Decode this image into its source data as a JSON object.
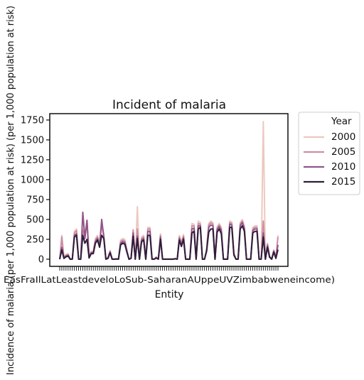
{
  "chart_data": {
    "type": "line",
    "title": "Incident of malaria",
    "xlabel": "Entity",
    "ylabel": "Incidence of malaria (per 1,000 population at risk) (per 1,000 population at risk)",
    "ylim": [
      -90,
      1830
    ],
    "yticks": [
      0,
      250,
      500,
      750,
      1000,
      1250,
      1500,
      1750
    ],
    "x_tick_labels_overlapping": "EasFraIlLatLeastdeveloLoSub-SaharanAUppeUVZimbabweneincome)",
    "x_tick_count": 105,
    "legend": {
      "title": "Year",
      "placement": "outside-right"
    },
    "grid": false,
    "series": [
      {
        "name": "2000",
        "color": "#ecc9c0",
        "values": [
          0,
          300,
          25,
          60,
          70,
          0,
          0,
          350,
          380,
          0,
          0,
          380,
          300,
          480,
          30,
          100,
          100,
          260,
          300,
          210,
          450,
          320,
          0,
          25,
          110,
          0,
          0,
          5,
          0,
          240,
          260,
          250,
          120,
          0,
          20,
          350,
          0,
          660,
          0,
          280,
          300,
          0,
          400,
          400,
          0,
          0,
          30,
          0,
          320,
          0,
          0,
          0,
          0,
          0,
          0,
          10,
          0,
          300,
          220,
          310,
          0,
          0,
          0,
          450,
          440,
          0,
          480,
          460,
          0,
          0,
          130,
          450,
          480,
          460,
          0,
          410,
          450,
          400,
          0,
          0,
          0,
          480,
          470,
          80,
          0,
          0,
          460,
          500,
          420,
          0,
          0,
          0,
          400,
          420,
          420,
          0,
          0,
          1730,
          0,
          200,
          40,
          0,
          120,
          20,
          300
        ]
      },
      {
        "name": "2005",
        "color": "#cd8fa1",
        "values": [
          0,
          280,
          20,
          50,
          60,
          0,
          0,
          330,
          360,
          0,
          0,
          360,
          280,
          480,
          25,
          90,
          90,
          240,
          280,
          190,
          430,
          300,
          0,
          20,
          100,
          0,
          0,
          5,
          0,
          220,
          240,
          230,
          110,
          0,
          15,
          370,
          0,
          380,
          0,
          260,
          280,
          0,
          380,
          380,
          0,
          0,
          25,
          0,
          300,
          0,
          0,
          0,
          0,
          0,
          0,
          8,
          0,
          280,
          200,
          290,
          0,
          0,
          0,
          420,
          420,
          0,
          450,
          440,
          0,
          0,
          120,
          430,
          460,
          440,
          0,
          390,
          430,
          380,
          0,
          0,
          0,
          460,
          450,
          70,
          0,
          0,
          440,
          480,
          400,
          0,
          0,
          0,
          380,
          400,
          400,
          0,
          0,
          480,
          0,
          190,
          35,
          0,
          110,
          15,
          280
        ]
      },
      {
        "name": "2010",
        "color": "#925689",
        "values": [
          0,
          150,
          15,
          40,
          50,
          0,
          0,
          300,
          320,
          0,
          0,
          590,
          260,
          490,
          20,
          80,
          80,
          220,
          260,
          170,
          500,
          280,
          0,
          15,
          90,
          0,
          0,
          4,
          0,
          200,
          220,
          210,
          100,
          0,
          12,
          330,
          0,
          290,
          0,
          240,
          260,
          0,
          350,
          350,
          0,
          0,
          20,
          0,
          280,
          0,
          0,
          0,
          0,
          0,
          0,
          6,
          0,
          260,
          180,
          270,
          0,
          0,
          0,
          380,
          390,
          0,
          420,
          420,
          0,
          0,
          110,
          400,
          430,
          420,
          0,
          370,
          410,
          360,
          0,
          0,
          0,
          440,
          430,
          60,
          0,
          0,
          420,
          460,
          380,
          0,
          0,
          0,
          360,
          380,
          380,
          0,
          0,
          330,
          0,
          170,
          30,
          0,
          100,
          12,
          180
        ]
      },
      {
        "name": "2015",
        "color": "#2e1e3b",
        "values": [
          0,
          120,
          10,
          30,
          40,
          0,
          0,
          280,
          300,
          0,
          0,
          300,
          200,
          250,
          15,
          70,
          70,
          200,
          240,
          150,
          300,
          260,
          0,
          10,
          80,
          0,
          0,
          3,
          0,
          180,
          200,
          190,
          90,
          0,
          10,
          290,
          0,
          260,
          0,
          220,
          240,
          0,
          300,
          300,
          0,
          0,
          15,
          0,
          250,
          0,
          0,
          0,
          0,
          0,
          0,
          5,
          0,
          240,
          160,
          250,
          0,
          0,
          0,
          330,
          350,
          0,
          380,
          400,
          0,
          0,
          100,
          340,
          380,
          380,
          0,
          340,
          380,
          320,
          0,
          0,
          0,
          400,
          400,
          50,
          0,
          0,
          380,
          420,
          350,
          0,
          0,
          0,
          330,
          350,
          350,
          0,
          0,
          280,
          0,
          150,
          25,
          0,
          90,
          10,
          120
        ]
      }
    ]
  }
}
